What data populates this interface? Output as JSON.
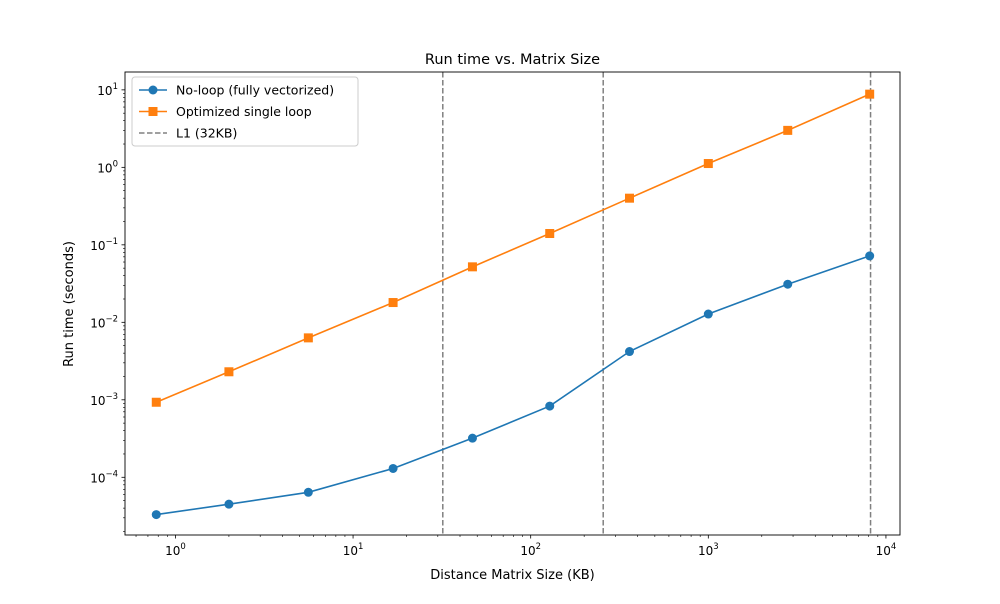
{
  "chart_data": {
    "type": "line",
    "title": "Run time vs. Matrix Size",
    "xlabel": "Distance Matrix Size (KB)",
    "ylabel": "Run time (seconds)",
    "xscale": "log",
    "yscale": "log",
    "xlim": [
      0.52,
      12000
    ],
    "ylim": [
      1.8e-05,
      17
    ],
    "x_ticks": [
      {
        "value": 1,
        "base": "10",
        "exp": "0"
      },
      {
        "value": 10,
        "base": "10",
        "exp": "1"
      },
      {
        "value": 100,
        "base": "10",
        "exp": "2"
      },
      {
        "value": 1000,
        "base": "10",
        "exp": "3"
      },
      {
        "value": 10000,
        "base": "10",
        "exp": "4"
      }
    ],
    "y_ticks": [
      {
        "value": 0.0001,
        "base": "10",
        "exp": "−4"
      },
      {
        "value": 0.001,
        "base": "10",
        "exp": "−3"
      },
      {
        "value": 0.01,
        "base": "10",
        "exp": "−2"
      },
      {
        "value": 0.1,
        "base": "10",
        "exp": "−1"
      },
      {
        "value": 1,
        "base": "10",
        "exp": "0"
      },
      {
        "value": 10,
        "base": "10",
        "exp": "1"
      }
    ],
    "series": [
      {
        "name": "No-loop (fully vectorized)",
        "color": "#1f77b4",
        "marker": "circle",
        "x": [
          0.78,
          2.0,
          5.6,
          16.8,
          47.0,
          128.0,
          360.0,
          1000.0,
          2800.0,
          8100.0
        ],
        "y": [
          3.3e-05,
          4.5e-05,
          6.4e-05,
          0.00013,
          0.00032,
          0.00083,
          0.0042,
          0.0128,
          0.031,
          0.072
        ]
      },
      {
        "name": "Optimized single loop",
        "color": "#ff7f0e",
        "marker": "square",
        "x": [
          0.78,
          2.0,
          5.6,
          16.8,
          47.0,
          128.0,
          360.0,
          1000.0,
          2800.0,
          8100.0
        ],
        "y": [
          0.00093,
          0.0023,
          0.0063,
          0.018,
          0.052,
          0.14,
          0.4,
          1.12,
          3.0,
          8.8
        ]
      }
    ],
    "vlines": [
      {
        "x": 32,
        "color": "#808080",
        "label": "L1 (32KB)"
      },
      {
        "x": 256,
        "color": "#808080"
      },
      {
        "x": 8192,
        "color": "#808080"
      }
    ],
    "legend": {
      "placement": "top-left",
      "entries": [
        {
          "label": "No-loop (fully vectorized)",
          "color": "#1f77b4",
          "kind": "circle"
        },
        {
          "label": "Optimized single loop",
          "color": "#ff7f0e",
          "kind": "square"
        },
        {
          "label": "L1 (32KB)",
          "color": "#808080",
          "kind": "dashed"
        }
      ]
    },
    "grid": false
  }
}
